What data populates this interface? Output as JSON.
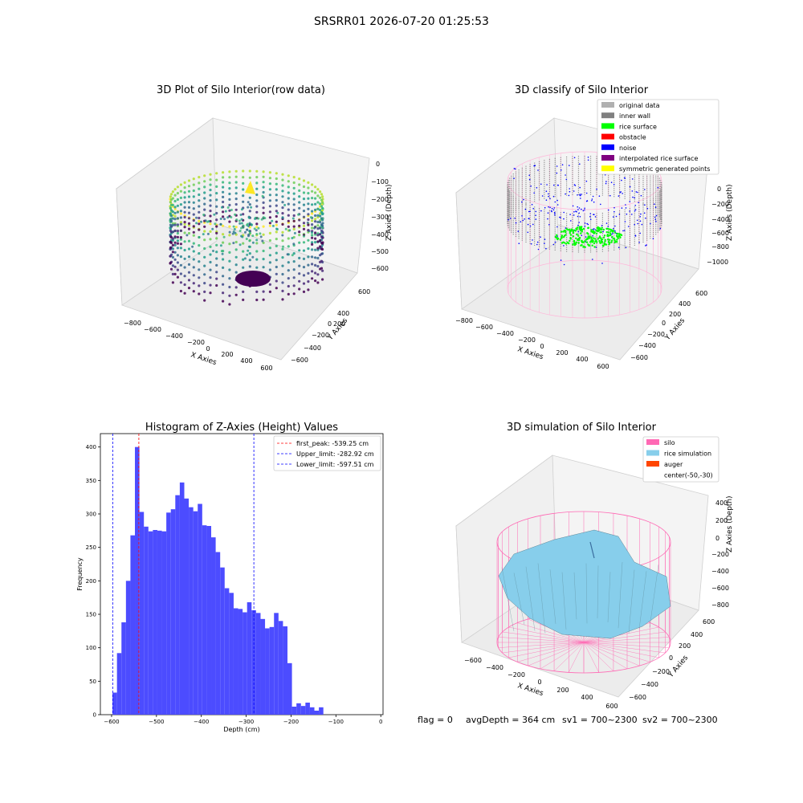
{
  "suptitle": "SRSRR01 2026-07-20 01:25:53",
  "status": {
    "flag": "flag = 0",
    "avg_depth": "avgDepth = 364 cm",
    "sv1": "sv1 = 700~2300",
    "sv2": "sv2 = 700~2300"
  },
  "colors": {
    "histogram_bar": "#4c4cff",
    "first_peak": "#ff0000",
    "limit_lines": "#0000ff",
    "silo_wire": "#ff69b4",
    "rice_surface": "#87ceeb",
    "noise": "#0000ff",
    "rice_points": "#00ff00"
  },
  "panels": {
    "raw": {
      "title": "3D Plot of Silo Interior(row data)",
      "xlabel": "X Axies",
      "ylabel": "Y Axies",
      "zlabel": "Z Axies (Depth)",
      "x_ticks": [
        "−800",
        "−600",
        "−400",
        "−200",
        "0",
        "200",
        "400",
        "600"
      ],
      "y_ticks": [
        "600",
        "400",
        "200",
        "0",
        "−200",
        "−400",
        "−600"
      ],
      "z_ticks": [
        "0",
        "−100",
        "−200",
        "−300",
        "−400",
        "−500",
        "−600"
      ]
    },
    "classify": {
      "title": "3D classify of Silo Interior",
      "xlabel": "X Axies",
      "ylabel": "Y Axies",
      "zlabel": "Z Axies (Depth)",
      "x_ticks": [
        "−800",
        "−600",
        "−400",
        "−200",
        "0",
        "200",
        "400",
        "600"
      ],
      "y_ticks": [
        "600",
        "400",
        "200",
        "0",
        "−200",
        "−400",
        "−600"
      ],
      "z_ticks": [
        "0",
        "−200",
        "−400",
        "−600",
        "−800",
        "−1000"
      ],
      "legend": [
        {
          "label": "original data",
          "color": "#b0b0b0"
        },
        {
          "label": "inner wall",
          "color": "#808080"
        },
        {
          "label": "rice surface",
          "color": "#00ff00"
        },
        {
          "label": "obstacle",
          "color": "#ff0000"
        },
        {
          "label": "noise",
          "color": "#0000ff"
        },
        {
          "label": "interpolated rice surface",
          "color": "#800080"
        },
        {
          "label": "symmetric generated points",
          "color": "#ffff00"
        }
      ]
    },
    "simulation": {
      "title": "3D simulation of Silo Interior",
      "xlabel": "X Axies",
      "ylabel": "Y Axies",
      "zlabel": "Z Axies (Depth)",
      "x_ticks": [
        "−600",
        "−400",
        "−200",
        "0",
        "200",
        "400",
        "600"
      ],
      "y_ticks": [
        "600",
        "400",
        "200",
        "0",
        "−200",
        "−400",
        "−600"
      ],
      "z_ticks": [
        "400",
        "200",
        "0",
        "−200",
        "−400",
        "−600",
        "−800"
      ],
      "legend": [
        {
          "label": "silo",
          "color": "#ff69b4"
        },
        {
          "label": "rice simulation",
          "color": "#87ceeb"
        },
        {
          "label": "auger",
          "color": "#ff4500"
        },
        {
          "label": "center(-50,-30)",
          "color": ""
        }
      ]
    }
  },
  "chart_data": {
    "type": "bar",
    "title": "Histogram of Z-Axies (Height) Values",
    "xlabel": "Depth (cm)",
    "ylabel": "Frequency",
    "xlim": [
      -625,
      5
    ],
    "ylim": [
      0,
      420
    ],
    "x_ticks": [
      -600,
      -500,
      -400,
      -300,
      -200,
      -100,
      0
    ],
    "y_ticks": [
      0,
      50,
      100,
      150,
      200,
      250,
      300,
      350,
      400
    ],
    "bin_start": -598,
    "bin_width": 10,
    "values": [
      33,
      92,
      138,
      200,
      268,
      400,
      303,
      281,
      274,
      276,
      275,
      274,
      302,
      307,
      328,
      347,
      323,
      310,
      304,
      315,
      283,
      282,
      265,
      243,
      220,
      189,
      182,
      159,
      158,
      153,
      168,
      156,
      152,
      143,
      129,
      131,
      152,
      140,
      132,
      77,
      12,
      17,
      13,
      18,
      11,
      6,
      11
    ],
    "vlines": [
      {
        "name": "first_peak",
        "label": "first_peak: -539.25 cm",
        "x": -539.25,
        "color": "#ff0000"
      },
      {
        "name": "upper_limit",
        "label": "Upper_limit: -282.92 cm",
        "x": -282.92,
        "color": "#0000ff"
      },
      {
        "name": "lower_limit",
        "label": "Lower_limit: -597.51 cm",
        "x": -597.51,
        "color": "#0000ff"
      }
    ],
    "legend_position": "top-right",
    "grid": false
  }
}
